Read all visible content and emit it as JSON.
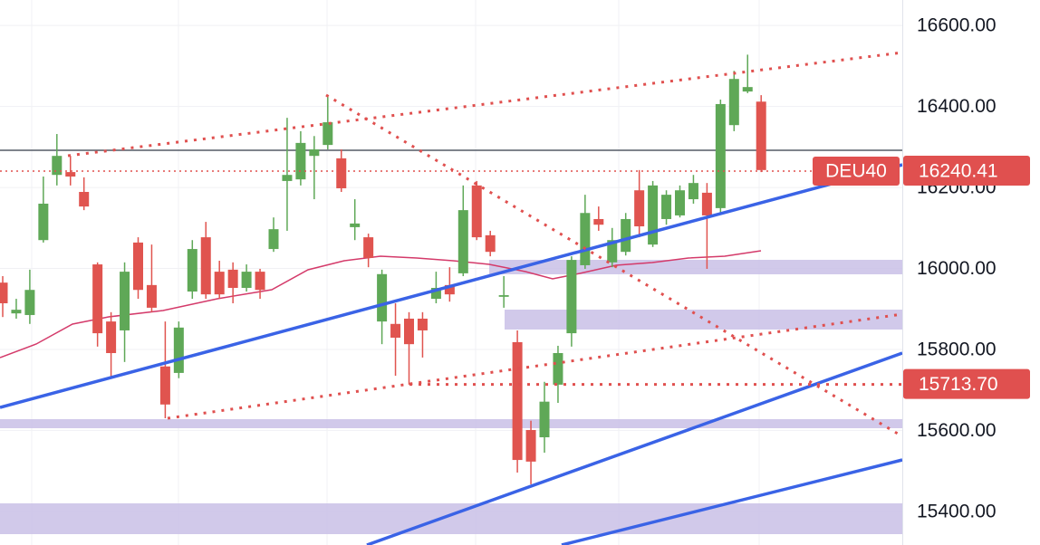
{
  "chart_data": {
    "type": "candlestick",
    "up_color": "#5fa857",
    "down_color": "#e0544f",
    "open": [
      15965,
      15889,
      15885,
      16070,
      16231,
      16238,
      16189,
      16010,
      15869,
      15847,
      16064,
      15959,
      15758,
      15742,
      15943,
      16077,
      15992,
      15997,
      15952,
      15992,
      16048,
      16216,
      16220,
      16278,
      16305,
      16272,
      16102,
      16077,
      15869,
      15863,
      15876,
      15876,
      15925,
      15959,
      15988,
      16205,
      16082,
      15930,
      15818,
      15601,
      15583,
      15713,
      15840,
      16008,
      16122,
      16015,
      16041,
      16193,
      16059,
      16122,
      16131,
      16171,
      16187,
      16149,
      16354,
      16437,
      16412
    ],
    "high": [
      15981,
      15925,
      15997,
      16227,
      16332,
      16278,
      16225,
      16015,
      15892,
      16015,
      16077,
      16059,
      15869,
      15869,
      16070,
      16115,
      16019,
      16015,
      16010,
      15999,
      16126,
      16372,
      16339,
      16327,
      16428,
      16294,
      16171,
      16086,
      15997,
      15914,
      15892,
      15892,
      15992,
      16003,
      16205,
      16216,
      16093,
      15981,
      15847,
      15624,
      15720,
      15809,
      16030,
      16182,
      16153,
      16100,
      16137,
      16243,
      16216,
      16193,
      16205,
      16231,
      16211,
      16417,
      16488,
      16528,
      16428
    ],
    "low": [
      15880,
      15876,
      15863,
      16064,
      16205,
      16205,
      16144,
      15807,
      15729,
      15769,
      15925,
      15892,
      15630,
      15729,
      15925,
      15925,
      15925,
      15914,
      15943,
      15925,
      16041,
      16093,
      16205,
      16171,
      16294,
      16189,
      16070,
      16003,
      15813,
      15735,
      15713,
      15780,
      15914,
      15918,
      15981,
      16070,
      16030,
      15903,
      15496,
      15467,
      15545,
      15668,
      15807,
      15999,
      16093,
      16003,
      16032,
      16077,
      16053,
      16108,
      16126,
      16160,
      15999,
      16137,
      16339,
      16433,
      16238
    ],
    "close": [
      15914,
      15898,
      15947,
      16160,
      16278,
      16227,
      16153,
      15840,
      15791,
      15992,
      15947,
      15903,
      15664,
      15854,
      16048,
      15936,
      15936,
      15952,
      15992,
      15947,
      16097,
      16231,
      16310,
      16294,
      16361,
      16198,
      16111,
      16026,
      15986,
      15829,
      15813,
      15847,
      15952,
      15936,
      16144,
      16077,
      16041,
      15934,
      15527,
      15523,
      15671,
      15791,
      16021,
      16137,
      16108,
      16070,
      16122,
      16104,
      16205,
      16182,
      16193,
      16211,
      16131,
      16406,
      16468,
      16448,
      16243
    ],
    "ylim": [
      15317,
      16663
    ],
    "yticks": [
      {
        "value": 15400,
        "label": "15400.00"
      },
      {
        "value": 15600,
        "label": "15600.00"
      },
      {
        "value": 15800,
        "label": "15800.00"
      },
      {
        "value": 16000,
        "label": "16000.00"
      },
      {
        "value": 16200,
        "label": "16200.00"
      },
      {
        "value": 16400,
        "label": "16400.00"
      },
      {
        "value": 16600,
        "label": "16600.00"
      }
    ],
    "grid": true,
    "price_lines": [
      {
        "name": "DEU40",
        "value": 16240.41,
        "label": "16240.41"
      },
      {
        "value": 15713.7,
        "label": "15713.70"
      }
    ]
  }
}
